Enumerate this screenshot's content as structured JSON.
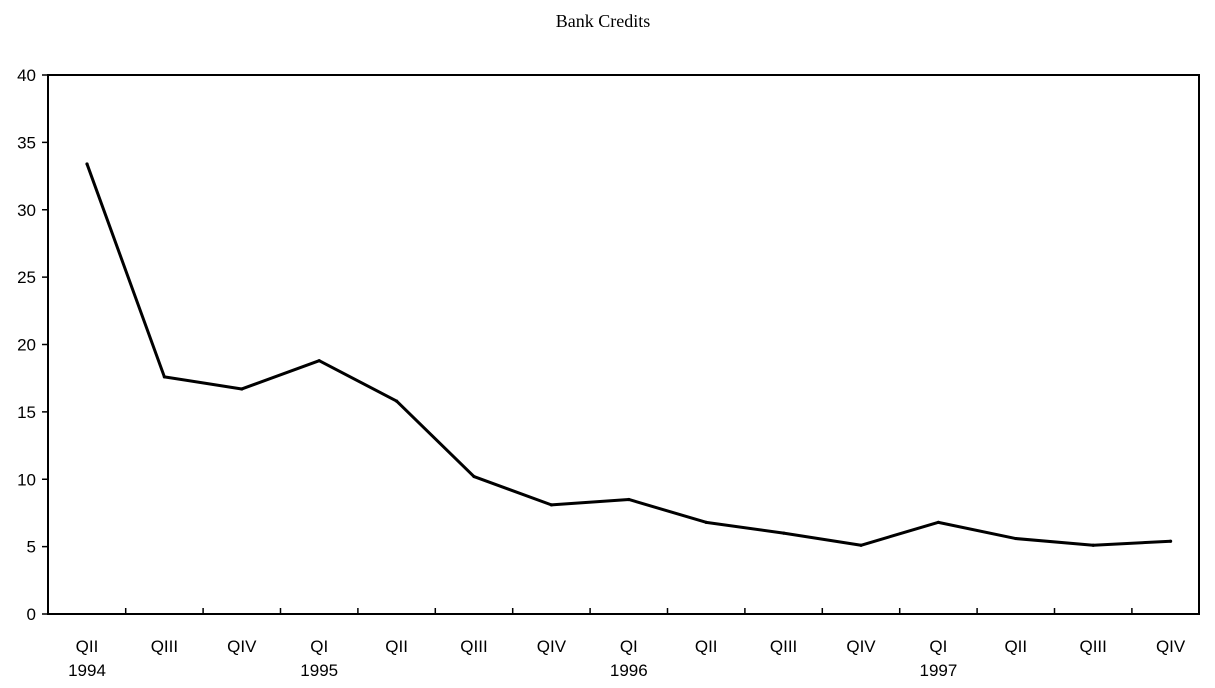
{
  "chart_data": {
    "type": "line",
    "title": "Bank Credits",
    "xlabel": "",
    "ylabel": "",
    "ylim": [
      0,
      40
    ],
    "yticks": [
      0,
      5,
      10,
      15,
      20,
      25,
      30,
      35,
      40
    ],
    "grid": false,
    "categories": [
      "QII",
      "QIII",
      "QIV",
      "QI",
      "QII",
      "QIII",
      "QIV",
      "QI",
      "QII",
      "QIII",
      "QIV",
      "QI",
      "QII",
      "QIII",
      "QIV"
    ],
    "year_labels": [
      {
        "index": 0,
        "label": "1994"
      },
      {
        "index": 3,
        "label": "1995"
      },
      {
        "index": 7,
        "label": "1996"
      },
      {
        "index": 11,
        "label": "1997"
      }
    ],
    "series": [
      {
        "values": [
          33.4,
          17.6,
          16.7,
          18.8,
          15.8,
          10.2,
          8.1,
          8.5,
          6.8,
          6.0,
          5.1,
          6.8,
          5.6,
          5.1,
          5.4
        ]
      }
    ]
  }
}
